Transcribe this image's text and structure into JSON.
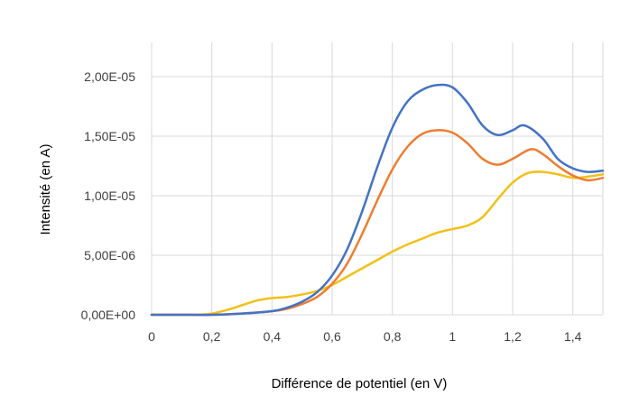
{
  "chart_data": {
    "type": "line",
    "title": "",
    "xlabel": "Différence de potentiel (en V)",
    "ylabel": "Intensité (en A)",
    "xlim": [
      0,
      1.5
    ],
    "ylim": [
      0,
      2e-05
    ],
    "grid": true,
    "legend": "none",
    "x_ticks": [
      "0",
      "0,2",
      "0,4",
      "0,6",
      "0,8",
      "1",
      "1,2",
      "1,4"
    ],
    "y_ticks": [
      "0,00E+00",
      "5,00E-06",
      "1,00E-05",
      "1,50E-05",
      "2,00E-05"
    ],
    "series": [
      {
        "color": "#4472c4",
        "x": [
          0,
          0.1,
          0.2,
          0.3,
          0.4,
          0.45,
          0.5,
          0.55,
          0.6,
          0.65,
          0.7,
          0.75,
          0.8,
          0.85,
          0.9,
          0.95,
          1.0,
          1.05,
          1.1,
          1.15,
          1.2,
          1.24,
          1.3,
          1.35,
          1.4,
          1.45,
          1.5
        ],
        "y": [
          0,
          0,
          0,
          1e-07,
          3e-07,
          6e-07,
          1.1e-06,
          1.9e-06,
          3.3e-06,
          5.5e-06,
          8.7e-06,
          1.24e-05,
          1.57e-05,
          1.79e-05,
          1.89e-05,
          1.93e-05,
          1.91e-05,
          1.78e-05,
          1.59e-05,
          1.51e-05,
          1.55e-05,
          1.59e-05,
          1.48e-05,
          1.31e-05,
          1.23e-05,
          1.2e-05,
          1.21e-05
        ]
      },
      {
        "color": "#ed7d31",
        "x": [
          0,
          0.1,
          0.2,
          0.3,
          0.4,
          0.45,
          0.5,
          0.55,
          0.6,
          0.65,
          0.7,
          0.75,
          0.8,
          0.85,
          0.9,
          0.95,
          1.0,
          1.05,
          1.1,
          1.15,
          1.2,
          1.26,
          1.3,
          1.35,
          1.4,
          1.45,
          1.5
        ],
        "y": [
          0,
          0,
          0,
          1e-07,
          3e-07,
          5e-07,
          9e-07,
          1.5e-06,
          2.6e-06,
          4.3e-06,
          6.8e-06,
          9.6e-06,
          1.22e-05,
          1.41e-05,
          1.52e-05,
          1.55e-05,
          1.53e-05,
          1.44e-05,
          1.31e-05,
          1.26e-05,
          1.31e-05,
          1.39e-05,
          1.35e-05,
          1.25e-05,
          1.17e-05,
          1.13e-05,
          1.15e-05
        ]
      },
      {
        "color": "#f2c018",
        "x": [
          0,
          0.1,
          0.15,
          0.2,
          0.25,
          0.3,
          0.35,
          0.4,
          0.45,
          0.5,
          0.55,
          0.6,
          0.65,
          0.7,
          0.75,
          0.8,
          0.85,
          0.9,
          0.95,
          1.0,
          1.05,
          1.1,
          1.15,
          1.2,
          1.25,
          1.3,
          1.35,
          1.4,
          1.45,
          1.5
        ],
        "y": [
          0,
          0,
          0,
          1e-07,
          4e-07,
          8e-07,
          1.2e-06,
          1.4e-06,
          1.5e-06,
          1.7e-06,
          2e-06,
          2.5e-06,
          3.2e-06,
          3.9e-06,
          4.6e-06,
          5.3e-06,
          5.9e-06,
          6.4e-06,
          6.9e-06,
          7.2e-06,
          7.5e-06,
          8.2e-06,
          9.7e-06,
          1.11e-05,
          1.19e-05,
          1.2e-05,
          1.18e-05,
          1.15e-05,
          1.16e-05,
          1.18e-05
        ]
      }
    ]
  }
}
